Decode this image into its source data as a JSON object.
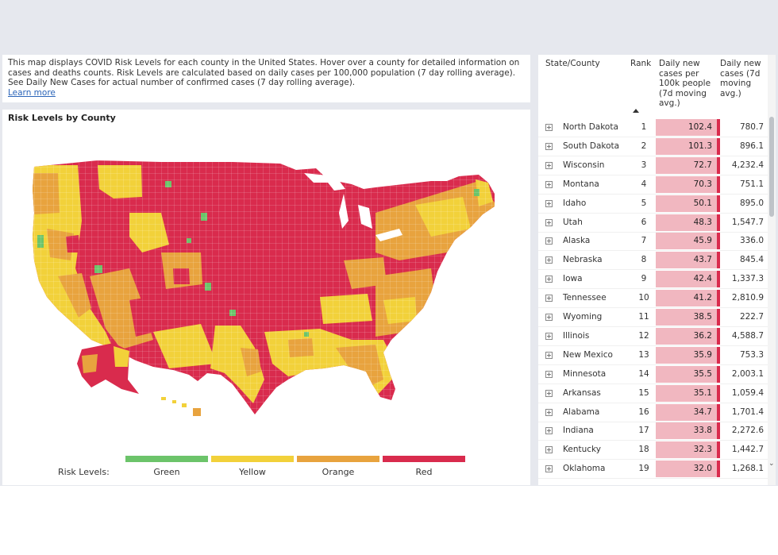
{
  "info": {
    "text": "This map displays COVID Risk Levels for each county in the United States. Hover over a county for detailed information on cases and deaths counts. Risk Levels are calculated based on daily cases per 100,000 population (7 day rolling average). See Daily New Cases for actual number of confirmed cases (7 day rolling average).",
    "link": "Learn more"
  },
  "map": {
    "title": "Risk Levels by County",
    "colors": {
      "green": "#6cc46a",
      "yellow": "#f2d13a",
      "orange": "#e8a33e",
      "red": "#d92b4d"
    },
    "legend": {
      "label": "Risk Levels:",
      "items": [
        {
          "name": "Green",
          "color": "#6cc46a"
        },
        {
          "name": "Yellow",
          "color": "#f2d13a"
        },
        {
          "name": "Orange",
          "color": "#e8a33e"
        },
        {
          "name": "Red",
          "color": "#d92b4d"
        }
      ]
    }
  },
  "table": {
    "headers": {
      "state": "State/County",
      "rank": "Rank",
      "rate_lines": [
        "Daily new",
        "cases per",
        "100k people",
        "(7d moving",
        "avg.)"
      ],
      "cases_lines": [
        "Daily new",
        "cases (7d",
        "moving",
        "avg.)"
      ]
    },
    "rows": [
      {
        "state": "North Dakota",
        "rank": "1",
        "rate": "102.4",
        "cases": "780.7"
      },
      {
        "state": "South Dakota",
        "rank": "2",
        "rate": "101.3",
        "cases": "896.1"
      },
      {
        "state": "Wisconsin",
        "rank": "3",
        "rate": "72.7",
        "cases": "4,232.4"
      },
      {
        "state": "Montana",
        "rank": "4",
        "rate": "70.3",
        "cases": "751.1"
      },
      {
        "state": "Idaho",
        "rank": "5",
        "rate": "50.1",
        "cases": "895.0"
      },
      {
        "state": "Utah",
        "rank": "6",
        "rate": "48.3",
        "cases": "1,547.7"
      },
      {
        "state": "Alaska",
        "rank": "7",
        "rate": "45.9",
        "cases": "336.0"
      },
      {
        "state": "Nebraska",
        "rank": "8",
        "rate": "43.7",
        "cases": "845.4"
      },
      {
        "state": "Iowa",
        "rank": "9",
        "rate": "42.4",
        "cases": "1,337.3"
      },
      {
        "state": "Tennessee",
        "rank": "10",
        "rate": "41.2",
        "cases": "2,810.9"
      },
      {
        "state": "Wyoming",
        "rank": "11",
        "rate": "38.5",
        "cases": "222.7"
      },
      {
        "state": "Illinois",
        "rank": "12",
        "rate": "36.2",
        "cases": "4,588.7"
      },
      {
        "state": "New Mexico",
        "rank": "13",
        "rate": "35.9",
        "cases": "753.3"
      },
      {
        "state": "Minnesota",
        "rank": "14",
        "rate": "35.5",
        "cases": "2,003.1"
      },
      {
        "state": "Arkansas",
        "rank": "15",
        "rate": "35.1",
        "cases": "1,059.4"
      },
      {
        "state": "Alabama",
        "rank": "16",
        "rate": "34.7",
        "cases": "1,701.4"
      },
      {
        "state": "Indiana",
        "rank": "17",
        "rate": "33.8",
        "cases": "2,272.6"
      },
      {
        "state": "Kentucky",
        "rank": "18",
        "rate": "32.3",
        "cases": "1,442.7"
      },
      {
        "state": "Oklahoma",
        "rank": "19",
        "rate": "32.0",
        "cases": "1,268.1"
      }
    ]
  }
}
